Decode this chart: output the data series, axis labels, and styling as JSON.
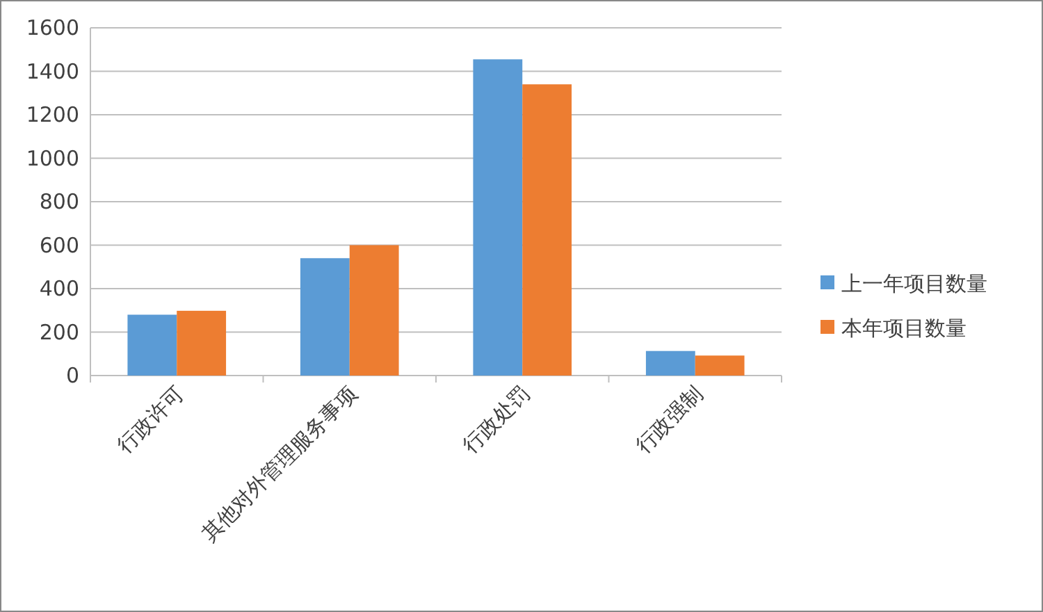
{
  "chart_data": {
    "type": "bar",
    "categories": [
      "行政许可",
      "其他对外管理服务事项",
      "行政处罚",
      "行政强制"
    ],
    "series": [
      {
        "name": "上一年项目数量",
        "color": "#5b9bd5",
        "values": [
          280,
          540,
          1455,
          113
        ]
      },
      {
        "name": "本年项目数量",
        "color": "#ed7d31",
        "values": [
          298,
          600,
          1340,
          92
        ]
      }
    ],
    "ylim": [
      0,
      1600
    ],
    "yticks": [
      0,
      200,
      400,
      600,
      800,
      1000,
      1200,
      1400,
      1600
    ],
    "grid": "y",
    "legend": "right"
  }
}
